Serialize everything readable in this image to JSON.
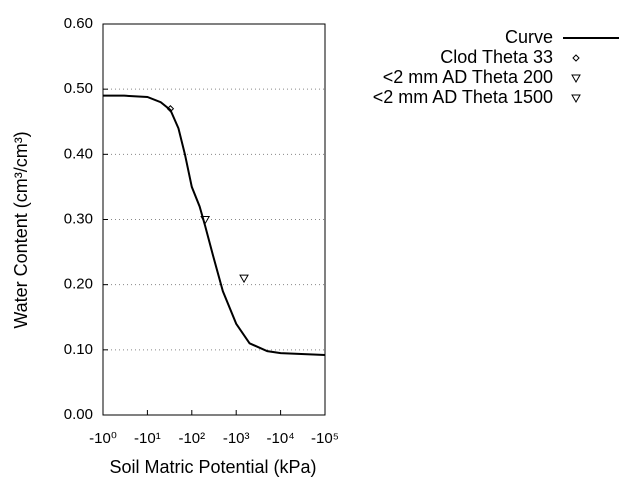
{
  "chart_data": {
    "type": "line",
    "xlabel": "Soil Matric Potential (kPa)",
    "ylabel": "Water Content (cm³/cm³)",
    "xlog": true,
    "xlim": [
      -1,
      -100000
    ],
    "xticks": [
      {
        "value": -1,
        "label": "-10⁰"
      },
      {
        "value": -10,
        "label": "-10¹"
      },
      {
        "value": -100,
        "label": "-10²"
      },
      {
        "value": -1000,
        "label": "-10³"
      },
      {
        "value": -10000,
        "label": "-10⁴"
      },
      {
        "value": -100000,
        "label": "-10⁵"
      }
    ],
    "ylim": [
      0,
      0.6
    ],
    "yticks": [
      {
        "value": 0,
        "label": "0.00"
      },
      {
        "value": 0.1,
        "label": "0.10"
      },
      {
        "value": 0.2,
        "label": "0.20"
      },
      {
        "value": 0.3,
        "label": "0.30"
      },
      {
        "value": 0.4,
        "label": "0.40"
      },
      {
        "value": 0.5,
        "label": "0.50"
      },
      {
        "value": 0.6,
        "label": "0.60"
      }
    ],
    "grid": true,
    "legend": "top-right",
    "series": [
      {
        "name": "Curve",
        "type": "line",
        "color": "#000000",
        "x": [
          -1,
          -3,
          -10,
          -20,
          -33,
          -50,
          -70,
          -100,
          -150,
          -200,
          -300,
          -500,
          -1000,
          -2000,
          -5000,
          -10000,
          -100000
        ],
        "values": [
          0.49,
          0.49,
          0.488,
          0.48,
          0.468,
          0.44,
          0.4,
          0.35,
          0.32,
          0.29,
          0.245,
          0.19,
          0.14,
          0.11,
          0.098,
          0.095,
          0.092
        ]
      },
      {
        "name": "Clod Theta 33",
        "type": "scatter",
        "marker": "diamond",
        "color": "#000000",
        "x": [
          -33
        ],
        "values": [
          0.47
        ]
      },
      {
        "name": "<2 mm AD Theta 200",
        "type": "scatter",
        "marker": "triangle-down",
        "color": "#000000",
        "x": [
          -200
        ],
        "values": [
          0.3
        ]
      },
      {
        "name": "<2 mm AD Theta 1500",
        "type": "scatter",
        "marker": "triangle-down",
        "color": "#000000",
        "x": [
          -1500
        ],
        "values": [
          0.21
        ]
      }
    ]
  }
}
